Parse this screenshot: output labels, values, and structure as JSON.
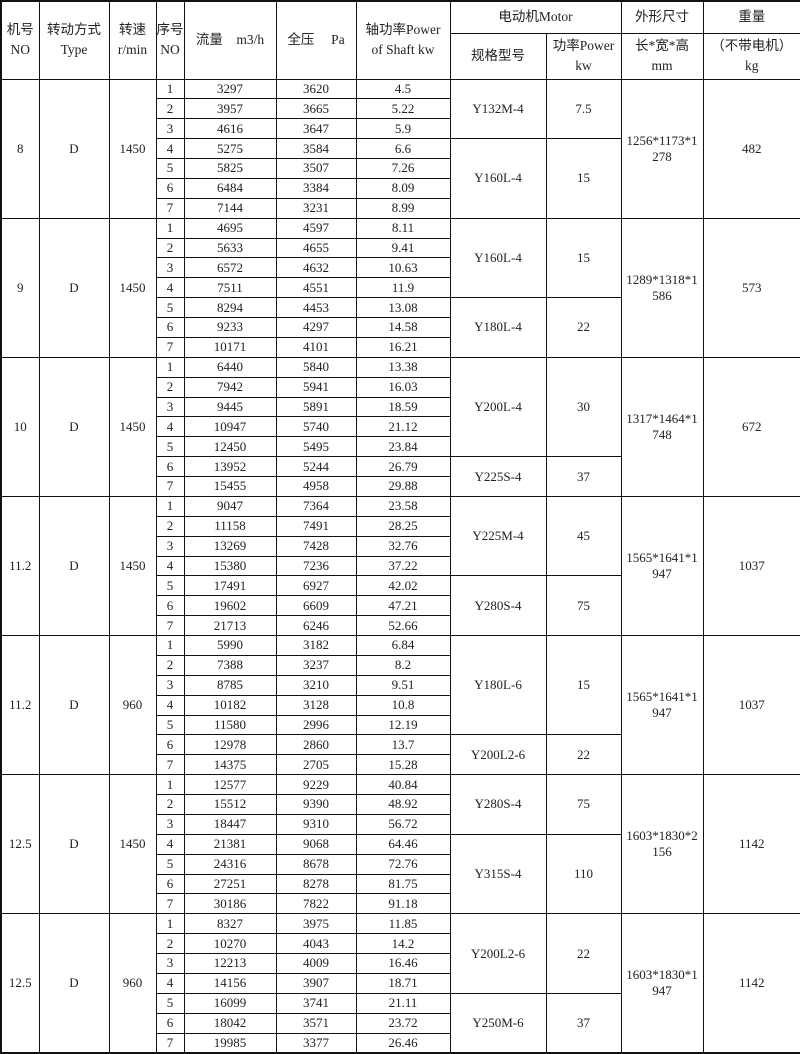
{
  "header": {
    "no": [
      "机号",
      "NO"
    ],
    "type": [
      "转动方式",
      "Type"
    ],
    "speed": [
      "转速",
      "r/min"
    ],
    "seq": [
      "序号",
      "NO"
    ],
    "flow": "流量　m3/h",
    "pressure": "全压　 Pa",
    "shaft_power": [
      "轴功率Power",
      "of Shaft  kw"
    ],
    "motor": "电动机Motor",
    "motor_model": "规格型号",
    "motor_power": [
      "功率Power",
      "kw"
    ],
    "dimensions": "外形尺寸",
    "dimensions_unit": [
      "长*宽*高",
      "mm"
    ],
    "weight": "重量",
    "weight_unit": [
      "（不带电机）",
      "kg"
    ]
  },
  "groups": [
    {
      "no": "8",
      "type": "D",
      "speed": "1450",
      "dimensions": "1256*1173*1278",
      "weight": "482",
      "rows": [
        [
          "1",
          "3297",
          "3620",
          "4.5"
        ],
        [
          "2",
          "3957",
          "3665",
          "5.22"
        ],
        [
          "3",
          "4616",
          "3647",
          "5.9"
        ],
        [
          "4",
          "5275",
          "3584",
          "6.6"
        ],
        [
          "5",
          "5825",
          "3507",
          "7.26"
        ],
        [
          "6",
          "6484",
          "3384",
          "8.09"
        ],
        [
          "7",
          "7144",
          "3231",
          "8.99"
        ]
      ],
      "motors": [
        {
          "model": "Y132M-4",
          "power": "7.5",
          "rows": 3
        },
        {
          "model": "Y160L-4",
          "power": "15",
          "rows": 4
        }
      ]
    },
    {
      "no": "9",
      "type": "D",
      "speed": "1450",
      "dimensions": "1289*1318*1586",
      "weight": "573",
      "rows": [
        [
          "1",
          "4695",
          "4597",
          "8.11"
        ],
        [
          "2",
          "5633",
          "4655",
          "9.41"
        ],
        [
          "3",
          "6572",
          "4632",
          "10.63"
        ],
        [
          "4",
          "7511",
          "4551",
          "11.9"
        ],
        [
          "5",
          "8294",
          "4453",
          "13.08"
        ],
        [
          "6",
          "9233",
          "4297",
          "14.58"
        ],
        [
          "7",
          "10171",
          "4101",
          "16.21"
        ]
      ],
      "motors": [
        {
          "model": "Y160L-4",
          "power": "15",
          "rows": 4
        },
        {
          "model": "Y180L-4",
          "power": "22",
          "rows": 3
        }
      ]
    },
    {
      "no": "10",
      "type": "D",
      "speed": "1450",
      "dimensions": "1317*1464*1748",
      "weight": "672",
      "rows": [
        [
          "1",
          "6440",
          "5840",
          "13.38"
        ],
        [
          "2",
          "7942",
          "5941",
          "16.03"
        ],
        [
          "3",
          "9445",
          "5891",
          "18.59"
        ],
        [
          "4",
          "10947",
          "5740",
          "21.12"
        ],
        [
          "5",
          "12450",
          "5495",
          "23.84"
        ],
        [
          "6",
          "13952",
          "5244",
          "26.79"
        ],
        [
          "7",
          "15455",
          "4958",
          "29.88"
        ]
      ],
      "motors": [
        {
          "model": "Y200L-4",
          "power": "30",
          "rows": 5
        },
        {
          "model": "Y225S-4",
          "power": "37",
          "rows": 2
        }
      ]
    },
    {
      "no": "11.2",
      "type": "D",
      "speed": "1450",
      "dimensions": "1565*1641*1947",
      "weight": "1037",
      "rows": [
        [
          "1",
          "9047",
          "7364",
          "23.58"
        ],
        [
          "2",
          "11158",
          "7491",
          "28.25"
        ],
        [
          "3",
          "13269",
          "7428",
          "32.76"
        ],
        [
          "4",
          "15380",
          "7236",
          "37.22"
        ],
        [
          "5",
          "17491",
          "6927",
          "42.02"
        ],
        [
          "6",
          "19602",
          "6609",
          "47.21"
        ],
        [
          "7",
          "21713",
          "6246",
          "52.66"
        ]
      ],
      "motors": [
        {
          "model": "Y225M-4",
          "power": "45",
          "rows": 4
        },
        {
          "model": "Y280S-4",
          "power": "75",
          "rows": 3
        }
      ]
    },
    {
      "no": "11.2",
      "type": "D",
      "speed": "960",
      "dimensions": "1565*1641*1947",
      "weight": "1037",
      "rows": [
        [
          "1",
          "5990",
          "3182",
          "6.84"
        ],
        [
          "2",
          "7388",
          "3237",
          "8.2"
        ],
        [
          "3",
          "8785",
          "3210",
          "9.51"
        ],
        [
          "4",
          "10182",
          "3128",
          "10.8"
        ],
        [
          "5",
          "11580",
          "2996",
          "12.19"
        ],
        [
          "6",
          "12978",
          "2860",
          "13.7"
        ],
        [
          "7",
          "14375",
          "2705",
          "15.28"
        ]
      ],
      "motors": [
        {
          "model": "Y180L-6",
          "power": "15",
          "rows": 5
        },
        {
          "model": "Y200L2-6",
          "power": "22",
          "rows": 2
        }
      ]
    },
    {
      "no": "12.5",
      "type": "D",
      "speed": "1450",
      "dimensions": "1603*1830*2156",
      "weight": "1142",
      "rows": [
        [
          "1",
          "12577",
          "9229",
          "40.84"
        ],
        [
          "2",
          "15512",
          "9390",
          "48.92"
        ],
        [
          "3",
          "18447",
          "9310",
          "56.72"
        ],
        [
          "4",
          "21381",
          "9068",
          "64.46"
        ],
        [
          "5",
          "24316",
          "8678",
          "72.76"
        ],
        [
          "6",
          "27251",
          "8278",
          "81.75"
        ],
        [
          "7",
          "30186",
          "7822",
          "91.18"
        ]
      ],
      "motors": [
        {
          "model": "Y280S-4",
          "power": "75",
          "rows": 3
        },
        {
          "model": "Y315S-4",
          "power": "110",
          "rows": 4
        }
      ]
    },
    {
      "no": "12.5",
      "type": "D",
      "speed": "960",
      "dimensions": "1603*1830*1947",
      "weight": "1142",
      "rows": [
        [
          "1",
          "8327",
          "3975",
          "11.85"
        ],
        [
          "2",
          "10270",
          "4043",
          "14.2"
        ],
        [
          "3",
          "12213",
          "4009",
          "16.46"
        ],
        [
          "4",
          "14156",
          "3907",
          "18.71"
        ],
        [
          "5",
          "16099",
          "3741",
          "21.11"
        ],
        [
          "6",
          "18042",
          "3571",
          "23.72"
        ],
        [
          "7",
          "19985",
          "3377",
          "26.46"
        ]
      ],
      "motors": [
        {
          "model": "Y200L2-6",
          "power": "22",
          "rows": 4
        },
        {
          "model": "Y250M-6",
          "power": "37",
          "rows": 3
        }
      ]
    }
  ]
}
